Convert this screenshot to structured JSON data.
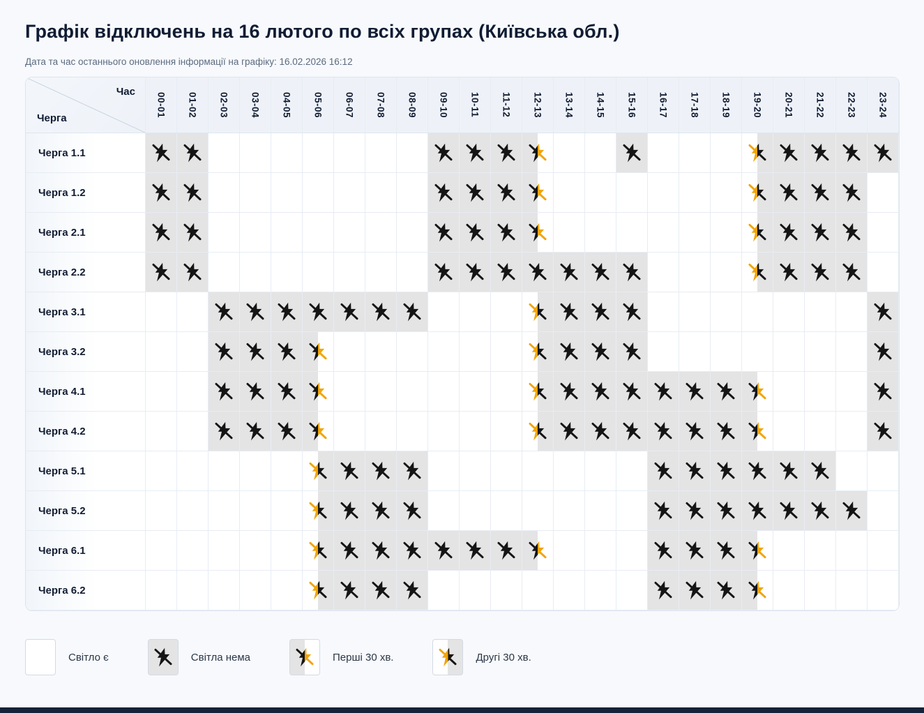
{
  "page": {
    "title": "Графік відключень на 16 лютого по всіх групах (Київська обл.)",
    "updated": "Дата та час останнього оновлення інформації на графіку: 16.02.2026 16:12"
  },
  "colors": {
    "page_bg": "#f7f9fc",
    "header_bg": "#eef2f8",
    "off_cell_bg": "#e4e4e4",
    "icon_black": "#151515",
    "accent_yellow": "#f0a50c",
    "bottom_bar": "#16223a"
  },
  "table": {
    "corner": {
      "time_label": "Час",
      "queue_label": "Черга"
    },
    "hours": [
      "00-01",
      "01-02",
      "02-03",
      "03-04",
      "04-05",
      "05-06",
      "06-07",
      "07-08",
      "08-09",
      "09-10",
      "10-11",
      "11-12",
      "12-13",
      "13-14",
      "14-15",
      "15-16",
      "16-17",
      "17-18",
      "18-19",
      "19-20",
      "20-21",
      "21-22",
      "22-23",
      "23-24"
    ],
    "state_legend": {
      "0": "light-on",
      "1": "light-off",
      "2": "off-first-30min",
      "3": "off-second-30min"
    },
    "rows": [
      {
        "label": "Черга 1.1",
        "cells": [
          1,
          1,
          0,
          0,
          0,
          0,
          0,
          0,
          0,
          1,
          1,
          1,
          2,
          0,
          0,
          1,
          0,
          0,
          0,
          3,
          1,
          1,
          1,
          1
        ]
      },
      {
        "label": "Черга 1.2",
        "cells": [
          1,
          1,
          0,
          0,
          0,
          0,
          0,
          0,
          0,
          1,
          1,
          1,
          2,
          0,
          0,
          0,
          0,
          0,
          0,
          3,
          1,
          1,
          1,
          0
        ]
      },
      {
        "label": "Черга 2.1",
        "cells": [
          1,
          1,
          0,
          0,
          0,
          0,
          0,
          0,
          0,
          1,
          1,
          1,
          2,
          0,
          0,
          0,
          0,
          0,
          0,
          3,
          1,
          1,
          1,
          0
        ]
      },
      {
        "label": "Черга 2.2",
        "cells": [
          1,
          1,
          0,
          0,
          0,
          0,
          0,
          0,
          0,
          1,
          1,
          1,
          1,
          1,
          1,
          1,
          0,
          0,
          0,
          3,
          1,
          1,
          1,
          0
        ]
      },
      {
        "label": "Черга 3.1",
        "cells": [
          0,
          0,
          1,
          1,
          1,
          1,
          1,
          1,
          1,
          0,
          0,
          0,
          3,
          1,
          1,
          1,
          0,
          0,
          0,
          0,
          0,
          0,
          0,
          1
        ]
      },
      {
        "label": "Черга 3.2",
        "cells": [
          0,
          0,
          1,
          1,
          1,
          2,
          0,
          0,
          0,
          0,
          0,
          0,
          3,
          1,
          1,
          1,
          0,
          0,
          0,
          0,
          0,
          0,
          0,
          1
        ]
      },
      {
        "label": "Черга 4.1",
        "cells": [
          0,
          0,
          1,
          1,
          1,
          2,
          0,
          0,
          0,
          0,
          0,
          0,
          3,
          1,
          1,
          1,
          1,
          1,
          1,
          2,
          0,
          0,
          0,
          1
        ]
      },
      {
        "label": "Черга 4.2",
        "cells": [
          0,
          0,
          1,
          1,
          1,
          2,
          0,
          0,
          0,
          0,
          0,
          0,
          3,
          1,
          1,
          1,
          1,
          1,
          1,
          2,
          0,
          0,
          0,
          1
        ]
      },
      {
        "label": "Черга 5.1",
        "cells": [
          0,
          0,
          0,
          0,
          0,
          3,
          1,
          1,
          1,
          0,
          0,
          0,
          0,
          0,
          0,
          0,
          1,
          1,
          1,
          1,
          1,
          1,
          0,
          0
        ]
      },
      {
        "label": "Черга 5.2",
        "cells": [
          0,
          0,
          0,
          0,
          0,
          3,
          1,
          1,
          1,
          0,
          0,
          0,
          0,
          0,
          0,
          0,
          1,
          1,
          1,
          1,
          1,
          1,
          1,
          0
        ]
      },
      {
        "label": "Черга 6.1",
        "cells": [
          0,
          0,
          0,
          0,
          0,
          3,
          1,
          1,
          1,
          1,
          1,
          1,
          2,
          0,
          0,
          0,
          1,
          1,
          1,
          2,
          0,
          0,
          0,
          0
        ]
      },
      {
        "label": "Черга 6.2",
        "cells": [
          0,
          0,
          0,
          0,
          0,
          3,
          1,
          1,
          1,
          0,
          0,
          0,
          0,
          0,
          0,
          0,
          1,
          1,
          1,
          2,
          0,
          0,
          0,
          0
        ]
      }
    ]
  },
  "legend": {
    "items": [
      {
        "type": "on",
        "label": "Світло є"
      },
      {
        "type": "off",
        "label": "Світла нема"
      },
      {
        "type": "first30",
        "label": "Перші 30 хв."
      },
      {
        "type": "second30",
        "label": "Другі 30 хв."
      }
    ]
  }
}
